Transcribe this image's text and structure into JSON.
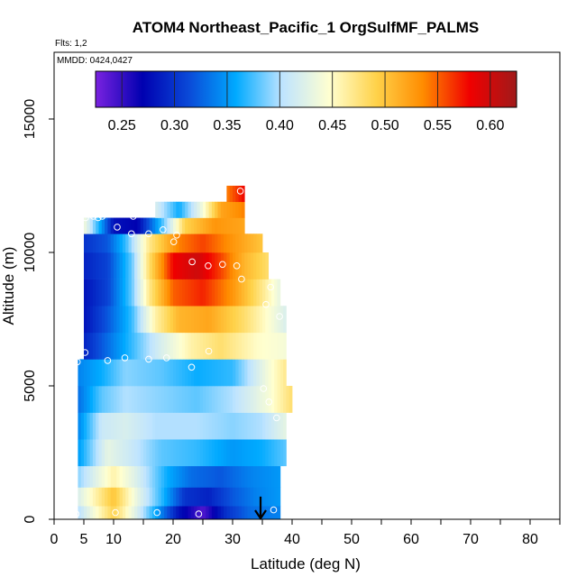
{
  "chart_data": {
    "type": "heatmap",
    "title": "ATOM4 Northeast_Pacific_1 OrgSulfMF_PALMS",
    "subtitle_flights": "Flts: 1,2",
    "subtitle_dates": "MMDD: 0424,0427",
    "xlabel": "Latitude (deg N)",
    "ylabel": "Altitude (m)",
    "xlim": [
      0,
      85
    ],
    "ylim": [
      0,
      17500
    ],
    "x_ticks": [
      0,
      10,
      20,
      30,
      40,
      50,
      60,
      70,
      80
    ],
    "x_ticks_minor_labeled": [
      5
    ],
    "x_tick_marks": [
      0,
      5,
      10,
      15,
      20,
      25,
      30,
      35,
      40,
      45,
      50,
      55,
      60,
      65,
      70,
      75,
      80,
      85
    ],
    "y_ticks": [
      0,
      5000,
      10000,
      15000
    ],
    "colorbar": {
      "min": 0.225,
      "max": 0.625,
      "ticks": [
        0.25,
        0.3,
        0.35,
        0.4,
        0.45,
        0.5,
        0.55,
        0.6
      ],
      "tick_labels": [
        "0.25",
        "0.30",
        "0.35",
        "0.40",
        "0.45",
        "0.50",
        "0.55",
        "0.60"
      ],
      "colors": [
        "#7a22e0",
        "#0000b0",
        "#0a4ad8",
        "#00aaff",
        "#bfe4ff",
        "#ffffd0",
        "#ffd24a",
        "#ff8c00",
        "#f00000",
        "#a01a1a"
      ]
    },
    "grid": false,
    "legend": "top",
    "altitude_bands": [
      {
        "alt": [
          0,
          500
        ],
        "lat": [
          4,
          38
        ],
        "values": [
          [
            4,
            0.4
          ],
          [
            10,
            0.49
          ],
          [
            14,
            0.42
          ],
          [
            17,
            0.36
          ],
          [
            21,
            0.28
          ],
          [
            25,
            0.24
          ],
          [
            29,
            0.3
          ],
          [
            33,
            0.33
          ],
          [
            38,
            0.34
          ]
        ]
      },
      {
        "alt": [
          500,
          1200
        ],
        "lat": [
          4,
          38
        ],
        "values": [
          [
            4,
            0.42
          ],
          [
            10,
            0.5
          ],
          [
            14,
            0.43
          ],
          [
            18,
            0.37
          ],
          [
            22,
            0.3
          ],
          [
            26,
            0.29
          ],
          [
            30,
            0.32
          ],
          [
            34,
            0.34
          ],
          [
            38,
            0.35
          ]
        ]
      },
      {
        "alt": [
          1200,
          2000
        ],
        "lat": [
          4,
          38
        ],
        "values": [
          [
            4,
            0.39
          ],
          [
            10,
            0.46
          ],
          [
            14,
            0.42
          ],
          [
            19,
            0.36
          ],
          [
            23,
            0.33
          ],
          [
            28,
            0.32
          ],
          [
            33,
            0.34
          ],
          [
            38,
            0.35
          ]
        ]
      },
      {
        "alt": [
          2000,
          3000
        ],
        "lat": [
          4,
          39
        ],
        "values": [
          [
            4,
            0.35
          ],
          [
            9,
            0.43
          ],
          [
            13,
            0.41
          ],
          [
            18,
            0.38
          ],
          [
            24,
            0.37
          ],
          [
            30,
            0.35
          ],
          [
            35,
            0.36
          ],
          [
            39,
            0.38
          ]
        ]
      },
      {
        "alt": [
          3000,
          4000
        ],
        "lat": [
          4,
          39
        ],
        "values": [
          [
            4,
            0.34
          ],
          [
            8,
            0.41
          ],
          [
            12,
            0.42
          ],
          [
            17,
            0.4
          ],
          [
            24,
            0.4
          ],
          [
            30,
            0.39
          ],
          [
            35,
            0.4
          ],
          [
            39,
            0.43
          ]
        ]
      },
      {
        "alt": [
          4000,
          5000
        ],
        "lat": [
          4,
          40
        ],
        "values": [
          [
            4,
            0.33
          ],
          [
            8,
            0.38
          ],
          [
            12,
            0.4
          ],
          [
            18,
            0.39
          ],
          [
            24,
            0.38
          ],
          [
            30,
            0.4
          ],
          [
            36,
            0.44
          ],
          [
            40,
            0.48
          ]
        ]
      },
      {
        "alt": [
          5000,
          6000
        ],
        "lat": [
          4,
          39
        ],
        "values": [
          [
            4,
            0.34
          ],
          [
            8,
            0.36
          ],
          [
            12,
            0.39
          ],
          [
            18,
            0.38
          ],
          [
            24,
            0.36
          ],
          [
            30,
            0.37
          ],
          [
            36,
            0.44
          ],
          [
            39,
            0.47
          ]
        ]
      },
      {
        "alt": [
          6000,
          7000
        ],
        "lat": [
          5,
          39
        ],
        "values": [
          [
            5,
            0.29
          ],
          [
            9,
            0.33
          ],
          [
            13,
            0.37
          ],
          [
            18,
            0.42
          ],
          [
            23,
            0.46
          ],
          [
            28,
            0.48
          ],
          [
            34,
            0.45
          ],
          [
            39,
            0.44
          ]
        ]
      },
      {
        "alt": [
          7000,
          8000
        ],
        "lat": [
          5,
          39
        ],
        "values": [
          [
            5,
            0.28
          ],
          [
            9,
            0.32
          ],
          [
            13,
            0.37
          ],
          [
            17,
            0.46
          ],
          [
            21,
            0.51
          ],
          [
            26,
            0.52
          ],
          [
            32,
            0.48
          ],
          [
            39,
            0.42
          ]
        ]
      },
      {
        "alt": [
          8000,
          9000
        ],
        "lat": [
          5,
          38
        ],
        "values": [
          [
            5,
            0.28
          ],
          [
            9,
            0.31
          ],
          [
            13,
            0.38
          ],
          [
            16,
            0.47
          ],
          [
            20,
            0.55
          ],
          [
            25,
            0.57
          ],
          [
            30,
            0.53
          ],
          [
            35,
            0.47
          ],
          [
            38,
            0.43
          ]
        ]
      },
      {
        "alt": [
          9000,
          10000
        ],
        "lat": [
          5,
          36
        ],
        "values": [
          [
            5,
            0.29
          ],
          [
            9,
            0.31
          ],
          [
            13,
            0.38
          ],
          [
            16,
            0.48
          ],
          [
            20,
            0.58
          ],
          [
            24,
            0.6
          ],
          [
            28,
            0.56
          ],
          [
            32,
            0.51
          ],
          [
            36,
            0.48
          ]
        ]
      },
      {
        "alt": [
          10000,
          10700
        ],
        "lat": [
          5,
          35
        ],
        "values": [
          [
            5,
            0.3
          ],
          [
            9,
            0.32
          ],
          [
            12,
            0.37
          ],
          [
            16,
            0.47
          ],
          [
            21,
            0.54
          ],
          [
            25,
            0.56
          ],
          [
            30,
            0.53
          ],
          [
            35,
            0.5
          ]
        ]
      },
      {
        "alt": [
          10700,
          11300
        ],
        "lat": [
          5,
          32
        ],
        "values": [
          [
            5,
            0.44
          ],
          [
            8,
            0.35
          ],
          [
            10,
            0.28
          ],
          [
            14,
            0.27
          ],
          [
            18,
            0.37
          ],
          [
            22,
            0.49
          ],
          [
            27,
            0.53
          ],
          [
            32,
            0.52
          ]
        ]
      },
      {
        "alt": [
          11300,
          11900
        ],
        "lat": [
          17,
          32
        ],
        "values": [
          [
            17,
            0.42
          ],
          [
            21,
            0.36
          ],
          [
            25,
            0.44
          ],
          [
            28,
            0.52
          ],
          [
            32,
            0.54
          ]
        ]
      },
      {
        "alt": [
          11900,
          12500
        ],
        "lat": [
          29,
          32
        ],
        "values": [
          [
            29,
            0.54
          ],
          [
            32,
            0.58
          ]
        ]
      }
    ],
    "observation_points": [
      [
        3.7,
        200
      ],
      [
        10.3,
        250
      ],
      [
        17.3,
        250
      ],
      [
        24.3,
        200
      ],
      [
        36.9,
        350
      ],
      [
        3.9,
        5900
      ],
      [
        5.2,
        6250
      ],
      [
        9.0,
        5950
      ],
      [
        11.9,
        6050
      ],
      [
        15.9,
        6000
      ],
      [
        18.9,
        6050
      ],
      [
        23.1,
        5700
      ],
      [
        26.0,
        6300
      ],
      [
        5.3,
        11300
      ],
      [
        6.6,
        11350
      ],
      [
        7.4,
        11300
      ],
      [
        8.1,
        11350
      ],
      [
        10.6,
        10950
      ],
      [
        13.3,
        11350
      ],
      [
        13.0,
        10700
      ],
      [
        15.9,
        10700
      ],
      [
        18.3,
        10850
      ],
      [
        20.6,
        10650
      ],
      [
        20.1,
        10400
      ],
      [
        23.2,
        9650
      ],
      [
        25.9,
        9500
      ],
      [
        28.3,
        9550
      ],
      [
        30.7,
        9500
      ],
      [
        31.5,
        9000
      ],
      [
        36.4,
        8700
      ],
      [
        35.6,
        8050
      ],
      [
        37.9,
        7600
      ],
      [
        31.3,
        12300
      ],
      [
        35.2,
        4900
      ],
      [
        36.1,
        4400
      ],
      [
        37.4,
        3800
      ]
    ],
    "marker": {
      "label": "arrow-down",
      "x": 34.7,
      "y_top": 850,
      "y_bottom": 0
    }
  }
}
